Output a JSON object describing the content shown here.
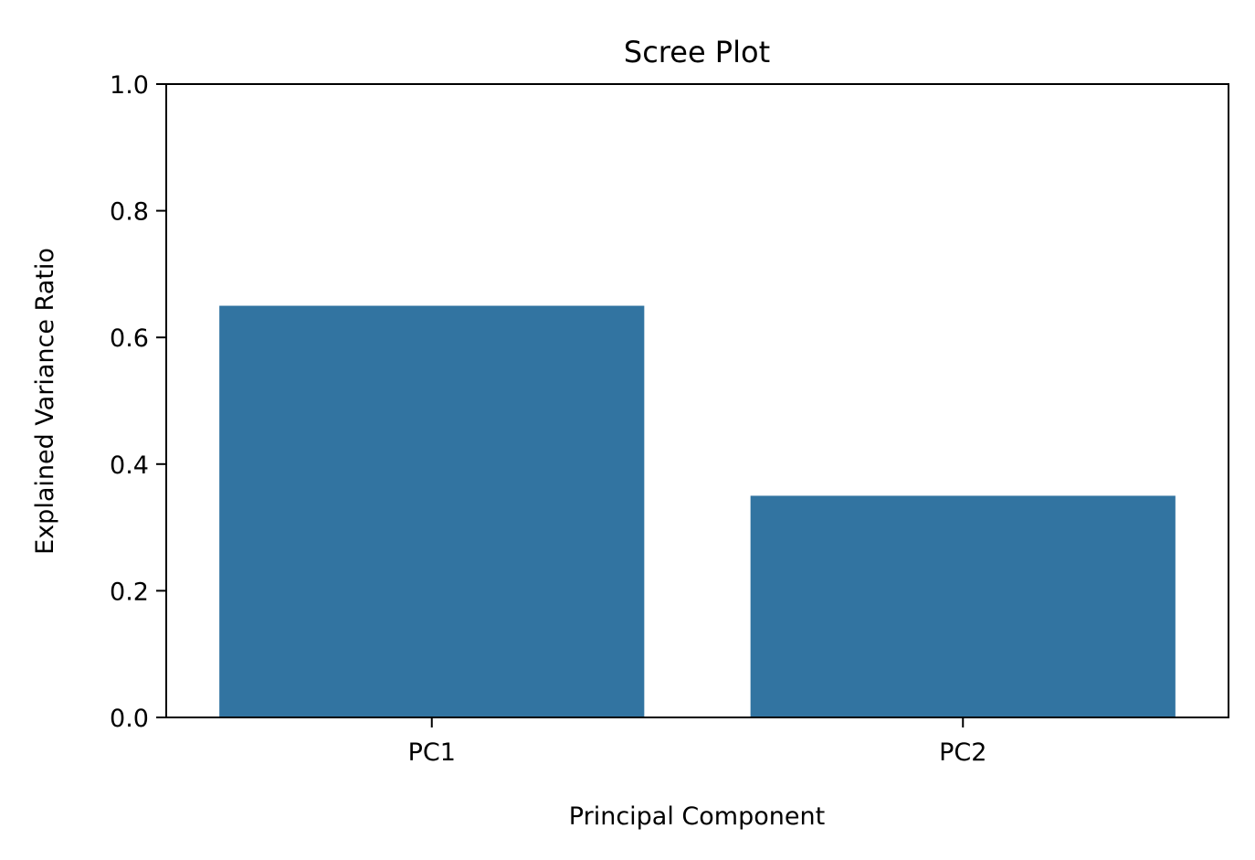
{
  "chart_data": {
    "type": "bar",
    "title": "Scree Plot",
    "xlabel": "Principal Component",
    "ylabel": "Explained Variance Ratio",
    "categories": [
      "PC1",
      "PC2"
    ],
    "values": [
      0.65,
      0.35
    ],
    "ylim": [
      0,
      1.0
    ],
    "yticks": [
      "0.0",
      "0.2",
      "0.4",
      "0.6",
      "0.8",
      "1.0"
    ],
    "bar_color": "#3274a1",
    "grid": false,
    "legend": "none"
  }
}
